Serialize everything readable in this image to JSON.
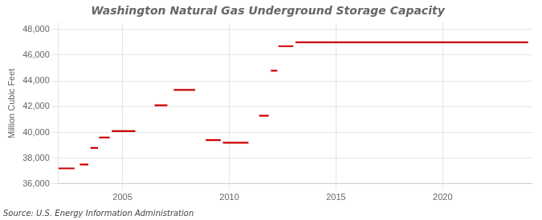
{
  "chart_data": {
    "type": "line",
    "title": "Washington Natural Gas Underground Storage Capacity",
    "ylabel": "Million Cubic Feet",
    "source": "Source: U.S. Energy Information Administration",
    "color": "#cc0000",
    "grid": true,
    "xlim": [
      2002.0,
      2024.2
    ],
    "xticks": [
      2005,
      2010,
      2015,
      2020
    ],
    "ylim": [
      36000,
      48500
    ],
    "yticks": [
      {
        "value": 36000,
        "label": "36,000"
      },
      {
        "value": 38000,
        "label": "38,000"
      },
      {
        "value": 40000,
        "label": "40,000"
      },
      {
        "value": 42000,
        "label": "42,000"
      },
      {
        "value": 44000,
        "label": "44,000"
      },
      {
        "value": 46000,
        "label": "46,000"
      },
      {
        "value": 48000,
        "label": "48,000"
      }
    ],
    "segments": [
      {
        "x_start": 2002.0,
        "x_end": 2002.75,
        "y": 37200
      },
      {
        "x_start": 2003.0,
        "x_end": 2003.4,
        "y": 37500
      },
      {
        "x_start": 2003.5,
        "x_end": 2003.85,
        "y": 38800
      },
      {
        "x_start": 2003.9,
        "x_end": 2004.4,
        "y": 39600
      },
      {
        "x_start": 2004.5,
        "x_end": 2005.6,
        "y": 40100
      },
      {
        "x_start": 2006.5,
        "x_end": 2007.1,
        "y": 42100
      },
      {
        "x_start": 2007.4,
        "x_end": 2008.4,
        "y": 43300
      },
      {
        "x_start": 2008.9,
        "x_end": 2009.6,
        "y": 39400
      },
      {
        "x_start": 2009.7,
        "x_end": 2010.9,
        "y": 39200
      },
      {
        "x_start": 2011.4,
        "x_end": 2011.85,
        "y": 41300
      },
      {
        "x_start": 2011.95,
        "x_end": 2012.25,
        "y": 44800
      },
      {
        "x_start": 2012.3,
        "x_end": 2013.0,
        "y": 46700
      },
      {
        "x_start": 2013.1,
        "x_end": 2024.0,
        "y": 47000
      }
    ]
  }
}
